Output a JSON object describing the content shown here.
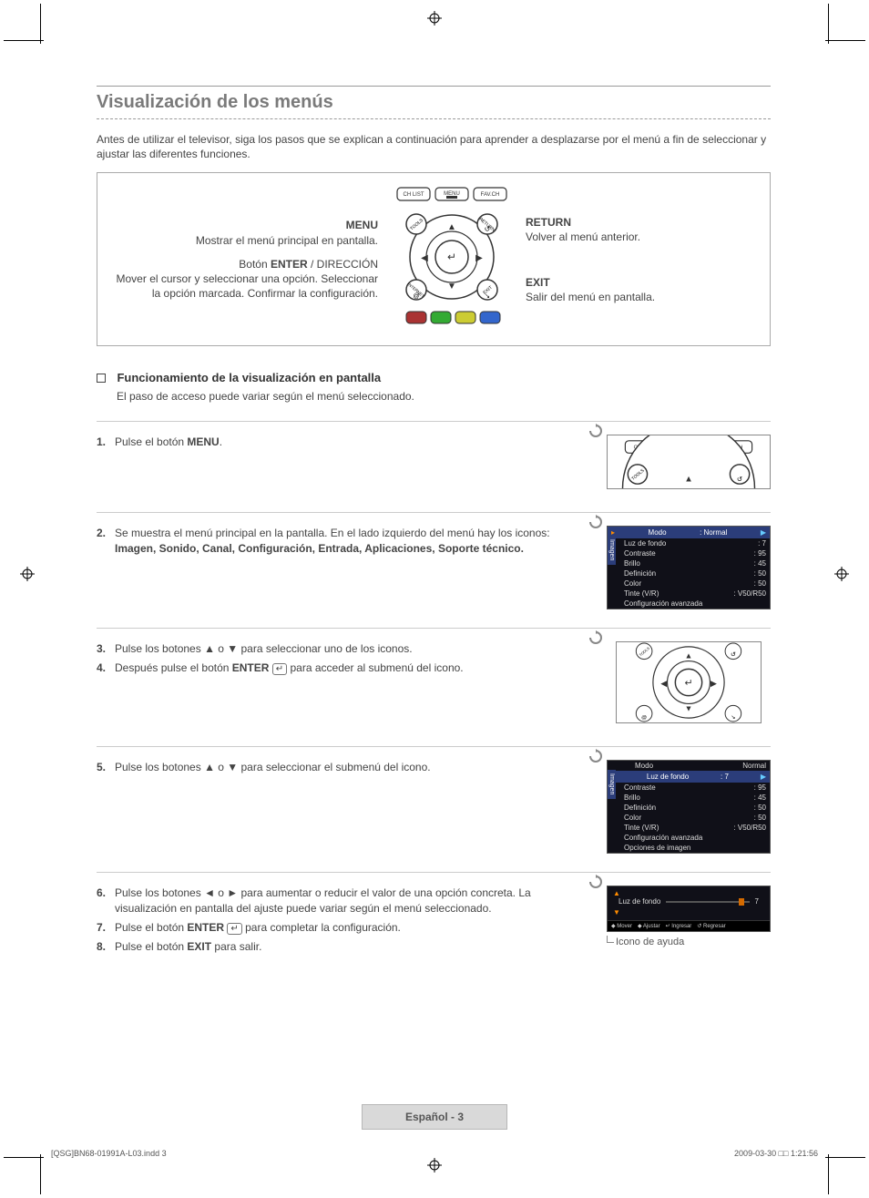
{
  "title": "Visualización de los menús",
  "intro": "Antes de utilizar el televisor, siga los pasos que se explican a continuación para aprender a desplazarse por el menú a fin de seleccionar y ajustar las diferentes funciones.",
  "remote": {
    "top_buttons": [
      "CH LIST",
      "MENU",
      "FAV.CH"
    ],
    "corner_labels": [
      "TOOLS",
      "RETURN",
      "INTERNET",
      "EXIT"
    ],
    "left": {
      "menu_label": "MENU",
      "menu_desc": "Mostrar el menú principal en pantalla.",
      "enter_prefix": "Botón ",
      "enter_label": "ENTER",
      "enter_suffix": " / DIRECCIÓN",
      "enter_desc": "Mover el cursor y seleccionar una opción. Seleccionar la opción marcada. Confirmar la configuración."
    },
    "right": {
      "return_label": "RETURN",
      "return_desc": "Volver al menú anterior.",
      "exit_label": "EXIT",
      "exit_desc": "Salir del menú en pantalla."
    }
  },
  "section": {
    "heading": "Funcionamiento de la visualización en pantalla",
    "sub": "El paso de acceso puede variar según el menú seleccionado."
  },
  "steps": {
    "s1": {
      "num": "1.",
      "pre": "Pulse el botón ",
      "bold": "MENU",
      "post": "."
    },
    "s2": {
      "num": "2.",
      "pre": "Se muestra el menú principal en la pantalla. En el lado izquierdo del menú hay los iconos: ",
      "bold": "Imagen, Sonido, Canal, Configuración, Entrada, Aplicaciones, Soporte técnico."
    },
    "s3": {
      "num": "3.",
      "text": "Pulse los botones ▲ o ▼ para seleccionar uno de los iconos."
    },
    "s4": {
      "num": "4.",
      "pre": "Después pulse el botón ",
      "bold": "ENTER ",
      "enter_icon": "↵",
      "post": " para acceder al submenú del icono."
    },
    "s5": {
      "num": "5.",
      "text": "Pulse los botones ▲ o ▼ para seleccionar el submenú del icono."
    },
    "s6": {
      "num": "6.",
      "text": "Pulse los botones ◄ o ► para aumentar o reducir el valor de una opción concreta. La visualización en pantalla del ajuste puede variar según el menú seleccionado."
    },
    "s7": {
      "num": "7.",
      "pre": "Pulse el botón ",
      "bold": "ENTER ",
      "enter_icon": "↵",
      "post": " para completar la configuración."
    },
    "s8": {
      "num": "8.",
      "pre": "Pulse el botón ",
      "bold": "EXIT",
      "post": " para salir."
    }
  },
  "menu_fig_a": {
    "side_tab": "Imagen",
    "header": {
      "label": "Modo",
      "value": ": Normal"
    },
    "rows": [
      {
        "label": "Luz de fondo",
        "value": ": 7"
      },
      {
        "label": "Contraste",
        "value": ": 95"
      },
      {
        "label": "Brillo",
        "value": ": 45"
      },
      {
        "label": "Definición",
        "value": ": 50"
      },
      {
        "label": "Color",
        "value": ": 50"
      },
      {
        "label": "Tinte (V/R)",
        "value": ": V50/R50"
      },
      {
        "label": "Configuración avanzada",
        "value": ""
      }
    ]
  },
  "menu_fig_b": {
    "side_tab": "Imagen",
    "toprow": {
      "label": "Modo",
      "value": "Normal"
    },
    "header": {
      "label": "Luz de fondo",
      "value": ": 7"
    },
    "rows": [
      {
        "label": "Contraste",
        "value": ": 95"
      },
      {
        "label": "Brillo",
        "value": ": 45"
      },
      {
        "label": "Definición",
        "value": ": 50"
      },
      {
        "label": "Color",
        "value": ": 50"
      },
      {
        "label": "Tinte (V/R)",
        "value": ": V50/R50"
      },
      {
        "label": "Configuración avanzada",
        "value": ""
      },
      {
        "label": "Opciones de imagen",
        "value": ""
      }
    ]
  },
  "slider_fig": {
    "label": "Luz de fondo",
    "value": "7",
    "help": [
      "◆ Mover",
      "◆ Ajustar",
      "↵ Ingresar",
      "↺ Regresar"
    ]
  },
  "help_icon_label": "Icono de ayuda",
  "footer": "Español - 3",
  "indd": {
    "left": "[QSG]BN68-01991A-L03.indd   3",
    "right": "2009-03-30   □□ 1:21:56"
  }
}
